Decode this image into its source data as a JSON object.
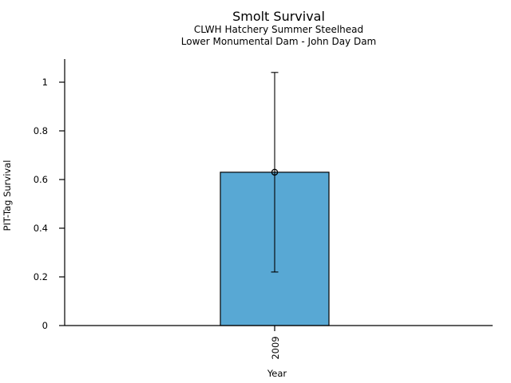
{
  "chart_data": {
    "type": "bar",
    "title": "Smolt Survival",
    "subtitle1": "CLWH Hatchery Summer Steelhead",
    "subtitle2": "Lower Monumental Dam - John Day Dam",
    "xlabel": "Year",
    "ylabel": "PIT-Tag Survival",
    "categories": [
      "2009"
    ],
    "values": [
      0.63
    ],
    "error_bars": [
      {
        "lower": 0.22,
        "upper": 1.04
      }
    ],
    "yticks": [
      0,
      0.2,
      0.4,
      0.6,
      0.8,
      1
    ],
    "ytick_labels": [
      "0",
      "0.2",
      "0.4",
      "0.6",
      "0.8",
      "1"
    ],
    "ylim": [
      0,
      1.1
    ],
    "x_tick_rotation": -90,
    "grid": false,
    "legend": "none",
    "bar_color": "#58a8d4",
    "bar_edge_color": "#000000",
    "axis_color": "#000000",
    "text_color": "#000000"
  }
}
